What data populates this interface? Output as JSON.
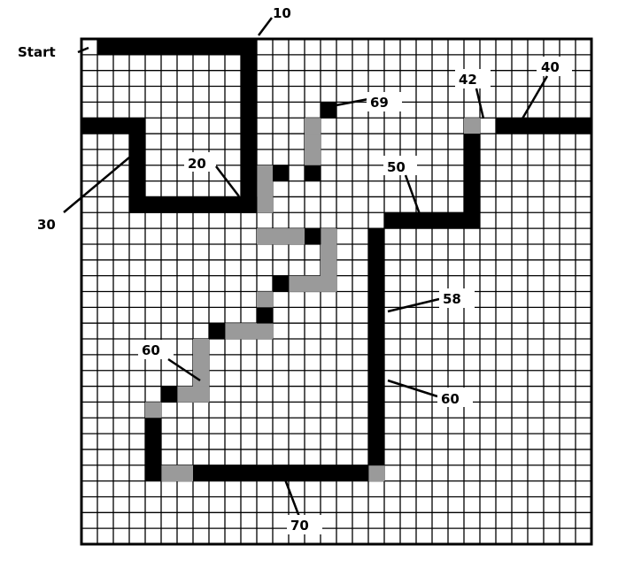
{
  "figure": {
    "start_label": "Start",
    "grid": {
      "cols": 32,
      "rows": 32
    },
    "colors": {
      "wall": "#000000",
      "shade": "#9a9a9a",
      "line": "#000000",
      "background": "#ffffff"
    },
    "labels": [
      {
        "id": "10",
        "text": "10"
      },
      {
        "id": "20",
        "text": "20"
      },
      {
        "id": "30",
        "text": "30"
      },
      {
        "id": "40",
        "text": "40"
      },
      {
        "id": "42",
        "text": "42"
      },
      {
        "id": "50",
        "text": "50"
      },
      {
        "id": "58",
        "text": "58"
      },
      {
        "id": "60a",
        "text": "60"
      },
      {
        "id": "60b",
        "text": "60"
      },
      {
        "id": "69",
        "text": "69"
      },
      {
        "id": "70",
        "text": "70"
      }
    ]
  }
}
